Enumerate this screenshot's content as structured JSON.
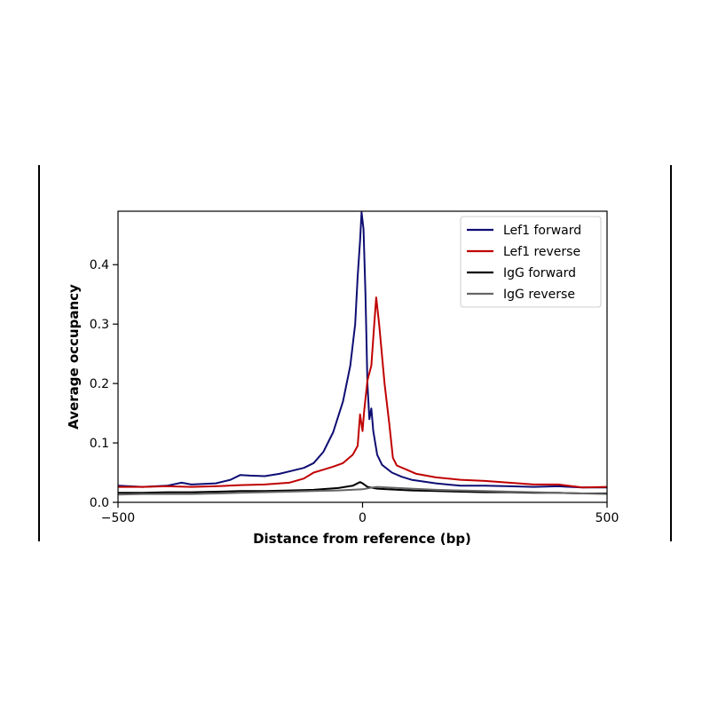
{
  "chart_data": {
    "type": "line",
    "xlabel": "Distance from reference (bp)",
    "ylabel": "Average occupancy",
    "xlim": [
      -500,
      500
    ],
    "ylim": [
      0,
      0.49
    ],
    "x_ticks": [
      "−500",
      "0",
      "500"
    ],
    "y_ticks": [
      "0.0",
      "0.1",
      "0.2",
      "0.3",
      "0.4"
    ],
    "legend_position": "top-right",
    "grid": false,
    "series": [
      {
        "name": "Lef1 forward",
        "color": "#0d0d73",
        "points": [
          [
            -500,
            0.028
          ],
          [
            -450,
            0.026
          ],
          [
            -400,
            0.028
          ],
          [
            -370,
            0.033
          ],
          [
            -350,
            0.03
          ],
          [
            -300,
            0.032
          ],
          [
            -270,
            0.038
          ],
          [
            -250,
            0.046
          ],
          [
            -230,
            0.045
          ],
          [
            -200,
            0.044
          ],
          [
            -170,
            0.048
          ],
          [
            -150,
            0.052
          ],
          [
            -120,
            0.058
          ],
          [
            -100,
            0.066
          ],
          [
            -80,
            0.085
          ],
          [
            -60,
            0.118
          ],
          [
            -40,
            0.17
          ],
          [
            -25,
            0.23
          ],
          [
            -15,
            0.3
          ],
          [
            -10,
            0.38
          ],
          [
            -5,
            0.44
          ],
          [
            -2,
            0.488
          ],
          [
            2,
            0.46
          ],
          [
            6,
            0.35
          ],
          [
            10,
            0.2
          ],
          [
            14,
            0.14
          ],
          [
            18,
            0.158
          ],
          [
            22,
            0.12
          ],
          [
            30,
            0.08
          ],
          [
            40,
            0.063
          ],
          [
            60,
            0.05
          ],
          [
            80,
            0.043
          ],
          [
            100,
            0.038
          ],
          [
            150,
            0.032
          ],
          [
            200,
            0.028
          ],
          [
            250,
            0.028
          ],
          [
            300,
            0.027
          ],
          [
            350,
            0.026
          ],
          [
            400,
            0.027
          ],
          [
            450,
            0.025
          ],
          [
            500,
            0.025
          ]
        ]
      },
      {
        "name": "Lef1 reverse",
        "color": "#c00000",
        "points": [
          [
            -500,
            0.026
          ],
          [
            -450,
            0.026
          ],
          [
            -400,
            0.027
          ],
          [
            -350,
            0.026
          ],
          [
            -300,
            0.027
          ],
          [
            -250,
            0.029
          ],
          [
            -200,
            0.03
          ],
          [
            -150,
            0.033
          ],
          [
            -120,
            0.04
          ],
          [
            -100,
            0.05
          ],
          [
            -80,
            0.055
          ],
          [
            -60,
            0.06
          ],
          [
            -40,
            0.066
          ],
          [
            -20,
            0.08
          ],
          [
            -10,
            0.095
          ],
          [
            -5,
            0.148
          ],
          [
            0,
            0.12
          ],
          [
            3,
            0.152
          ],
          [
            10,
            0.205
          ],
          [
            18,
            0.23
          ],
          [
            24,
            0.3
          ],
          [
            28,
            0.345
          ],
          [
            34,
            0.3
          ],
          [
            45,
            0.2
          ],
          [
            55,
            0.13
          ],
          [
            62,
            0.075
          ],
          [
            70,
            0.062
          ],
          [
            90,
            0.055
          ],
          [
            110,
            0.048
          ],
          [
            150,
            0.042
          ],
          [
            200,
            0.038
          ],
          [
            250,
            0.036
          ],
          [
            300,
            0.033
          ],
          [
            350,
            0.03
          ],
          [
            400,
            0.03
          ],
          [
            450,
            0.025
          ],
          [
            500,
            0.026
          ]
        ]
      },
      {
        "name": "IgG forward",
        "color": "#000000",
        "points": [
          [
            -500,
            0.016
          ],
          [
            -450,
            0.016
          ],
          [
            -400,
            0.017
          ],
          [
            -350,
            0.017
          ],
          [
            -300,
            0.018
          ],
          [
            -250,
            0.019
          ],
          [
            -200,
            0.019
          ],
          [
            -150,
            0.02
          ],
          [
            -100,
            0.021
          ],
          [
            -50,
            0.024
          ],
          [
            -20,
            0.028
          ],
          [
            -5,
            0.034
          ],
          [
            0,
            0.032
          ],
          [
            10,
            0.026
          ],
          [
            30,
            0.023
          ],
          [
            50,
            0.022
          ],
          [
            100,
            0.02
          ],
          [
            150,
            0.019
          ],
          [
            200,
            0.018
          ],
          [
            250,
            0.017
          ],
          [
            300,
            0.017
          ],
          [
            350,
            0.016
          ],
          [
            400,
            0.016
          ],
          [
            450,
            0.015
          ],
          [
            500,
            0.015
          ]
        ]
      },
      {
        "name": "IgG reverse",
        "color": "#666666",
        "points": [
          [
            -500,
            0.013
          ],
          [
            -450,
            0.014
          ],
          [
            -400,
            0.014
          ],
          [
            -350,
            0.014
          ],
          [
            -300,
            0.015
          ],
          [
            -250,
            0.016
          ],
          [
            -200,
            0.017
          ],
          [
            -150,
            0.018
          ],
          [
            -100,
            0.019
          ],
          [
            -50,
            0.02
          ],
          [
            0,
            0.022
          ],
          [
            20,
            0.025
          ],
          [
            30,
            0.026
          ],
          [
            50,
            0.025
          ],
          [
            100,
            0.023
          ],
          [
            150,
            0.021
          ],
          [
            200,
            0.02
          ],
          [
            250,
            0.019
          ],
          [
            300,
            0.018
          ],
          [
            350,
            0.017
          ],
          [
            400,
            0.016
          ],
          [
            450,
            0.015
          ],
          [
            500,
            0.014
          ]
        ]
      }
    ]
  }
}
